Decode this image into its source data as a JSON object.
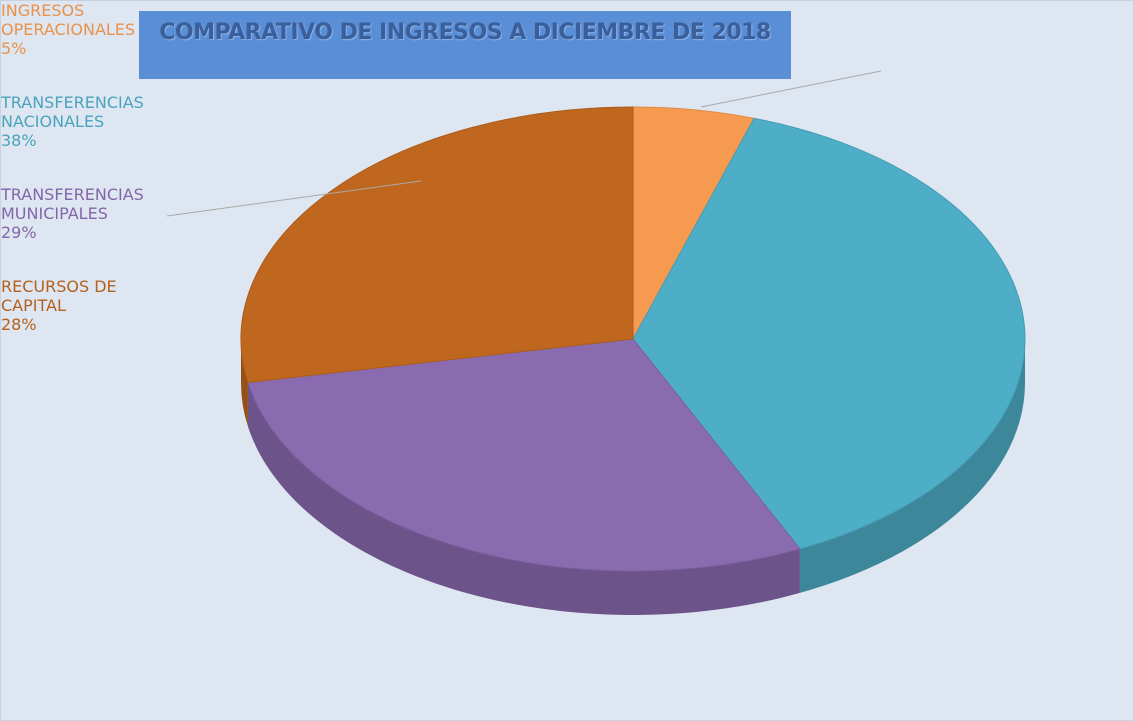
{
  "chart_data": {
    "type": "pie",
    "title": "COMPARATIVO DE INGRESOS A DICIEMBRE DE 2018",
    "categories": [
      "INGRESOS OPERACIONALES",
      "TRANSFERENCIAS NACIONALES",
      "TRANSFERENCIAS MUNICIPALES",
      "RECURSOS DE CAPITAL"
    ],
    "values": [
      5,
      38,
      29,
      28
    ],
    "value_labels": [
      "5%",
      "38%",
      "29%",
      "28%"
    ],
    "colors": [
      "#f59a4f",
      "#4eadc7",
      "#8a6bb0",
      "#bf661f"
    ]
  }
}
